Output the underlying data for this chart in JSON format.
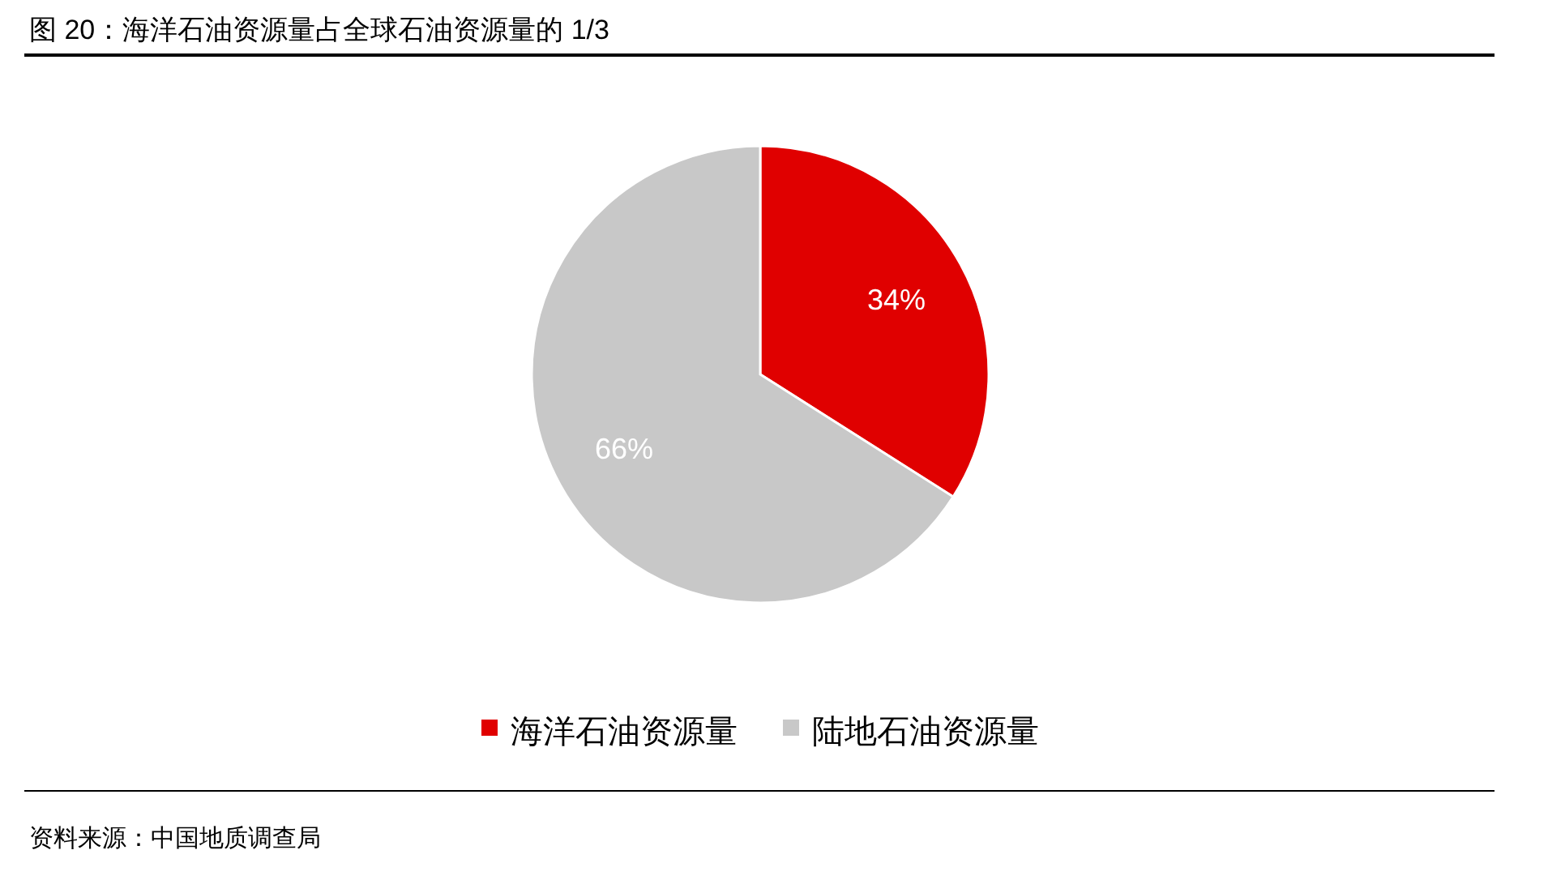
{
  "chart_data": {
    "type": "pie",
    "title": "图 20：海洋石油资源量占全球石油资源量的 1/3",
    "categories": [
      "海洋石油资源量",
      "陆地石油资源量"
    ],
    "values": [
      34,
      66
    ],
    "colors": [
      "#e00000",
      "#c8c8c8"
    ],
    "value_labels": [
      "34%",
      "66%"
    ],
    "legend": "bottom",
    "annotations": [
      "资料来源：中国地质调查局"
    ]
  }
}
